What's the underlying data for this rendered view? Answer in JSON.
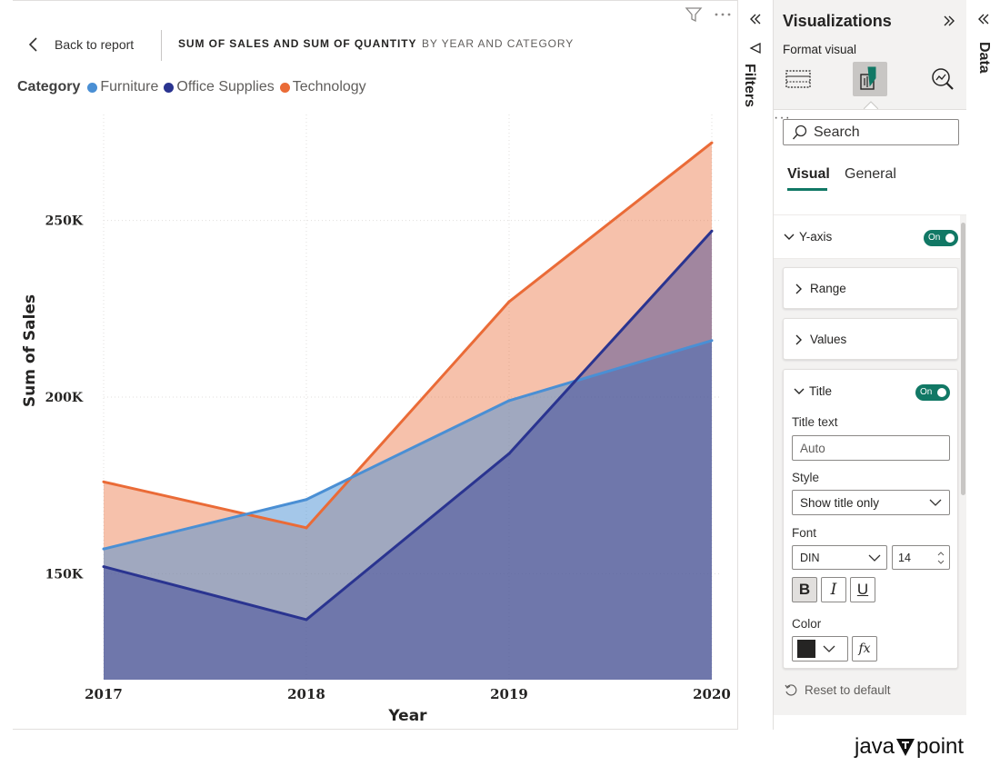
{
  "report": {
    "back_label": "Back to report",
    "title_main": "SUM OF SALES AND SUM OF QUANTITY",
    "title_sub": "BY YEAR AND CATEGORY",
    "header_icons": [
      "filter-icon",
      "more-options-icon"
    ]
  },
  "legend": {
    "title": "Category",
    "items": [
      {
        "label": "Furniture",
        "color": "#4a8fd4"
      },
      {
        "label": "Office Supplies",
        "color": "#2a3490"
      },
      {
        "label": "Technology",
        "color": "#ea6b37"
      }
    ]
  },
  "chart_data": {
    "type": "area",
    "x": [
      "2017",
      "2018",
      "2019",
      "2020"
    ],
    "xlabel": "Year",
    "ylabel": "Sum of Sales",
    "ylim": [
      120000,
      280000
    ],
    "yticks": [
      150000,
      200000,
      250000
    ],
    "ytick_labels": [
      "150K",
      "200K",
      "250K"
    ],
    "grid": true,
    "legend_position": "top-left",
    "series": [
      {
        "name": "Furniture",
        "values": [
          157000,
          171000,
          199000,
          216000
        ],
        "color": "#4a8fd4"
      },
      {
        "name": "Office Supplies",
        "values": [
          152000,
          137000,
          184000,
          247000
        ],
        "color": "#2a3490"
      },
      {
        "name": "Technology",
        "values": [
          176000,
          163000,
          227000,
          272000
        ],
        "color": "#ea6b37"
      }
    ]
  },
  "filters_pane": {
    "label": "Filters"
  },
  "viz_pane": {
    "title": "Visualizations",
    "format_visual_label": "Format visual",
    "search_placeholder": "Search",
    "tab_visual": "Visual",
    "tab_general": "General",
    "more": "···",
    "yaxis_label": "Y-axis",
    "toggle_on": "On",
    "range_label": "Range",
    "values_label": "Values",
    "title_section_label": "Title",
    "title_text_label": "Title text",
    "title_text_value": "Auto",
    "style_label": "Style",
    "style_value": "Show title only",
    "font_label": "Font",
    "font_value": "DIN",
    "font_size_value": "14",
    "bold": "B",
    "italic": "I",
    "underline": "U",
    "color_label": "Color",
    "color_value": "#252423",
    "fx": "fx",
    "reset_label": "Reset to default"
  },
  "data_pane": {
    "label": "Data"
  },
  "brand": {
    "left": "java",
    "right": "point"
  }
}
